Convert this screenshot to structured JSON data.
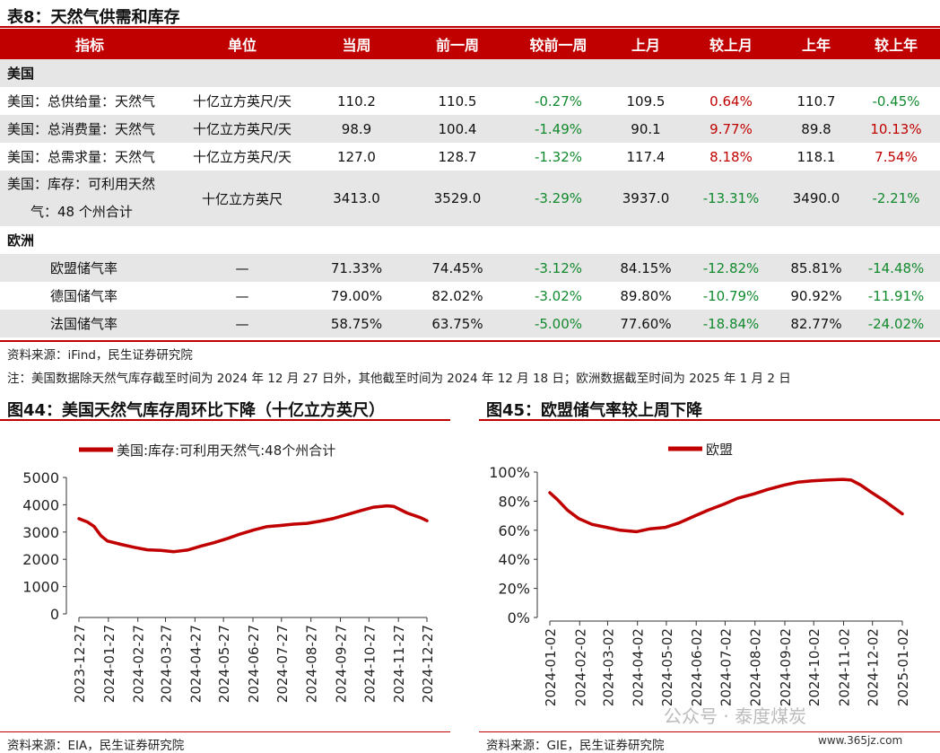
{
  "table": {
    "title": "表8：天然气供需和库存",
    "headers": [
      "指标",
      "单位",
      "当周",
      "前一周",
      "较前一周",
      "上月",
      "较上月",
      "上年",
      "较上年"
    ],
    "sections": [
      {
        "name": "美国",
        "rows": [
          {
            "label": "美国：总供给量：天然气",
            "unit": "十亿立方英尺/天",
            "cur": "110.2",
            "prev": "110.5",
            "d_prev": "-0.27%",
            "month": "109.5",
            "d_month": "0.64%",
            "year": "110.7",
            "d_year": "-0.45%"
          },
          {
            "label": "美国：总消费量：天然气",
            "unit": "十亿立方英尺/天",
            "cur": "98.9",
            "prev": "100.4",
            "d_prev": "-1.49%",
            "month": "90.1",
            "d_month": "9.77%",
            "year": "89.8",
            "d_year": "10.13%"
          },
          {
            "label": "美国：总需求量：天然气",
            "unit": "十亿立方英尺/天",
            "cur": "127.0",
            "prev": "128.7",
            "d_prev": "-1.32%",
            "month": "117.4",
            "d_month": "8.18%",
            "year": "118.1",
            "d_year": "7.54%"
          },
          {
            "label_line1": "美国：库存：可利用天然",
            "label_line2": "气：48 个州合计",
            "unit": "十亿立方英尺",
            "cur": "3413.0",
            "prev": "3529.0",
            "d_prev": "-3.29%",
            "month": "3937.0",
            "d_month": "-13.31%",
            "year": "3490.0",
            "d_year": "-2.21%"
          }
        ]
      },
      {
        "name": "欧洲",
        "rows": [
          {
            "label": "欧盟储气率",
            "unit": "—",
            "cur": "71.33%",
            "prev": "74.45%",
            "d_prev": "-3.12%",
            "month": "84.15%",
            "d_month": "-12.82%",
            "year": "85.81%",
            "d_year": "-14.48%"
          },
          {
            "label": "德国储气率",
            "unit": "—",
            "cur": "79.00%",
            "prev": "82.02%",
            "d_prev": "-3.02%",
            "month": "89.80%",
            "d_month": "-10.79%",
            "year": "90.92%",
            "d_year": "-11.91%"
          },
          {
            "label": "法国储气率",
            "unit": "—",
            "cur": "58.75%",
            "prev": "63.75%",
            "d_prev": "-5.00%",
            "month": "77.60%",
            "d_month": "-18.84%",
            "year": "82.77%",
            "d_year": "-24.02%"
          }
        ]
      }
    ],
    "source": "资料来源：iFind，民生证券研究院",
    "note": "注：美国数据除天然气库存截至时间为 2024 年 12 月 27 日外，其他截至时间为 2024 年 12 月 18 日；欧洲数据截至时间为 2025 年 1 月 2 日"
  },
  "colors": {
    "accent": "#c00000",
    "negative": "#118a2e",
    "positive": "#c00000",
    "row_grey": "#e7e6e6"
  },
  "chart_data": [
    {
      "type": "line",
      "title": "图44：美国天然气库存周环比下降（十亿立方英尺）",
      "legend": "美国:库存:可利用天然气:48个州合计",
      "ylim": [
        0,
        5000
      ],
      "yticks": [
        "0",
        "1000",
        "2000",
        "3000",
        "4000",
        "5000"
      ],
      "xticks": [
        "2023-12-27",
        "2024-01-27",
        "2024-02-27",
        "2024-03-27",
        "2024-04-27",
        "2024-05-27",
        "2024-06-27",
        "2024-07-27",
        "2024-08-27",
        "2024-09-27",
        "2024-10-27",
        "2024-11-27",
        "2024-12-27"
      ],
      "x": [
        "2023-12-27",
        "2024-01-05",
        "2024-01-12",
        "2024-01-19",
        "2024-01-26",
        "2024-02-09",
        "2024-02-23",
        "2024-03-08",
        "2024-03-22",
        "2024-04-05",
        "2024-04-19",
        "2024-05-03",
        "2024-05-17",
        "2024-05-31",
        "2024-06-14",
        "2024-06-28",
        "2024-07-12",
        "2024-07-26",
        "2024-08-09",
        "2024-08-23",
        "2024-09-06",
        "2024-09-20",
        "2024-10-04",
        "2024-10-18",
        "2024-11-01",
        "2024-11-15",
        "2024-11-22",
        "2024-12-06",
        "2024-12-20",
        "2024-12-27"
      ],
      "values": [
        3490,
        3370,
        3200,
        2870,
        2670,
        2550,
        2440,
        2350,
        2330,
        2280,
        2340,
        2480,
        2610,
        2760,
        2930,
        3080,
        3200,
        3240,
        3290,
        3320,
        3400,
        3500,
        3640,
        3780,
        3910,
        3960,
        3940,
        3700,
        3530,
        3413
      ],
      "series_color": "#c00000",
      "source": "资料来源：EIA，民生证券研究院"
    },
    {
      "type": "line",
      "title": "图45：欧盟储气率较上周下降",
      "legend": "欧盟",
      "ylim": [
        0,
        100
      ],
      "yticks": [
        "0%",
        "20%",
        "40%",
        "60%",
        "80%",
        "100%"
      ],
      "xticks": [
        "2024-01-02",
        "2024-02-02",
        "2024-03-02",
        "2024-04-02",
        "2024-05-02",
        "2024-06-02",
        "2024-07-02",
        "2024-08-02",
        "2024-09-02",
        "2024-10-02",
        "2024-11-02",
        "2024-12-02",
        "2025-01-02"
      ],
      "x": [
        "2024-01-02",
        "2024-01-10",
        "2024-01-20",
        "2024-02-01",
        "2024-02-15",
        "2024-03-01",
        "2024-03-15",
        "2024-04-01",
        "2024-04-15",
        "2024-05-01",
        "2024-05-15",
        "2024-06-01",
        "2024-06-15",
        "2024-07-01",
        "2024-07-15",
        "2024-08-01",
        "2024-08-15",
        "2024-09-01",
        "2024-09-15",
        "2024-10-01",
        "2024-10-15",
        "2024-11-01",
        "2024-11-10",
        "2024-11-20",
        "2024-12-01",
        "2024-12-15",
        "2025-01-02"
      ],
      "values": [
        85.8,
        81,
        74,
        68,
        64,
        62,
        60,
        59,
        61,
        62,
        65,
        70,
        74,
        78,
        82,
        85,
        88,
        91,
        93,
        94,
        94.5,
        95,
        94.5,
        91,
        86,
        80,
        71.3
      ],
      "series_color": "#c00000",
      "source": "资料来源：GIE，民生证券研究院"
    }
  ],
  "watermark": "公众号 · 泰度煤炭",
  "watermark_site": "www.365jz.com"
}
